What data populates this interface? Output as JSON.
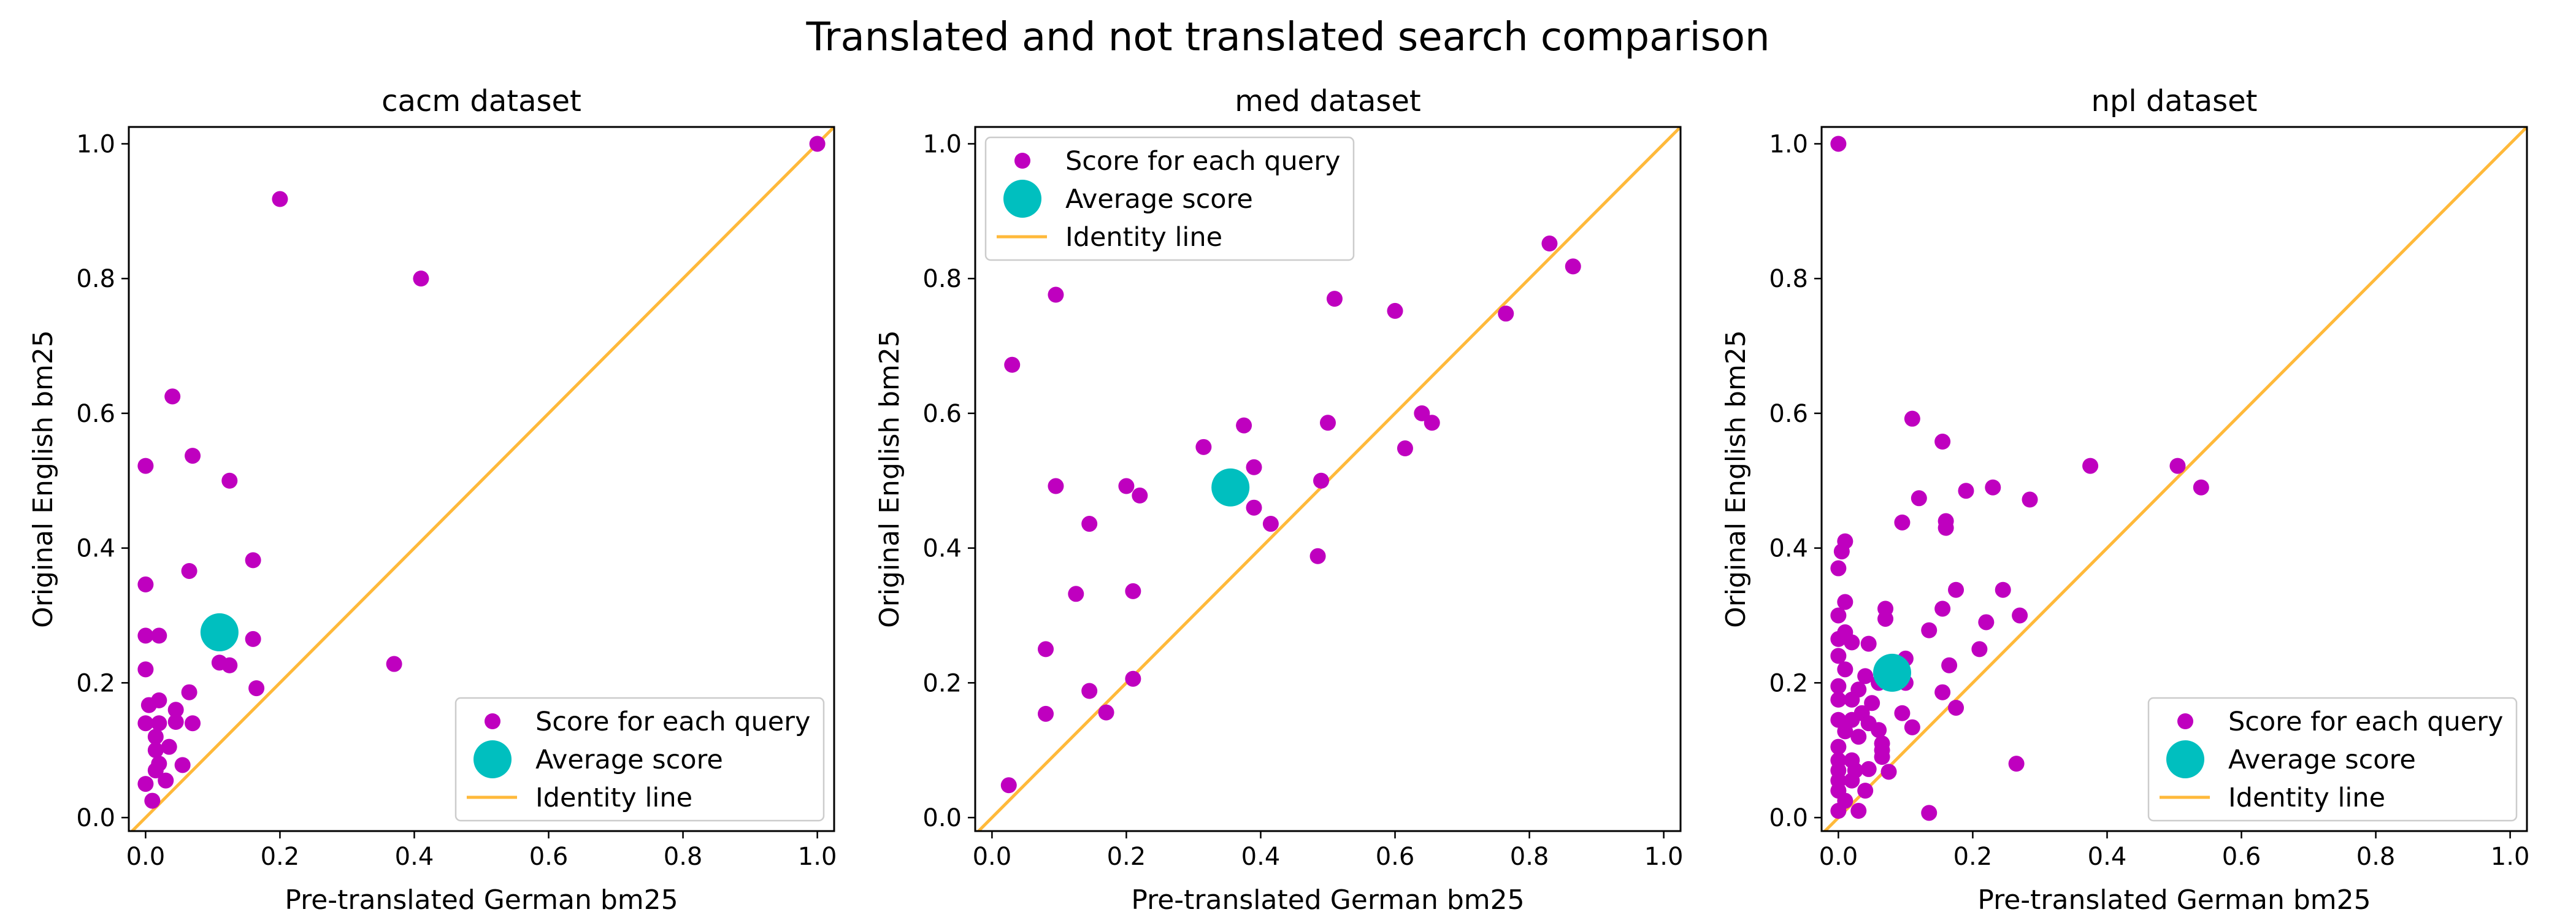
{
  "title": "Translated and not translated search comparison",
  "legend_labels": {
    "points": "Score for each query",
    "average": "Average score",
    "identity": "Identity line"
  },
  "colors": {
    "points": "#BF00BF",
    "average": "#00BFBF",
    "identity": "#FFB93A",
    "axes": "#000000"
  },
  "chart_data": [
    {
      "type": "scatter",
      "title": "cacm dataset",
      "xlabel": "Pre-translated German bm25",
      "ylabel": "Original English bm25",
      "xlim": [
        -0.025,
        1.025
      ],
      "ylim": [
        -0.02,
        1.025
      ],
      "xticks": [
        "0.0",
        "0.2",
        "0.4",
        "0.6",
        "0.8",
        "1.0"
      ],
      "yticks": [
        "0.0",
        "0.2",
        "0.4",
        "0.6",
        "0.8",
        "1.0"
      ],
      "legend_position": "lower right",
      "average": {
        "x": 0.11,
        "y": 0.275
      },
      "points": [
        [
          1.0,
          1.0
        ],
        [
          0.2,
          0.918
        ],
        [
          0.41,
          0.8
        ],
        [
          0.04,
          0.625
        ],
        [
          0.0,
          0.522
        ],
        [
          0.07,
          0.537
        ],
        [
          0.125,
          0.5
        ],
        [
          0.065,
          0.366
        ],
        [
          0.16,
          0.382
        ],
        [
          0.0,
          0.346
        ],
        [
          0.0,
          0.27
        ],
        [
          0.02,
          0.27
        ],
        [
          0.1,
          0.268
        ],
        [
          0.16,
          0.265
        ],
        [
          0.11,
          0.23
        ],
        [
          0.125,
          0.226
        ],
        [
          0.37,
          0.228
        ],
        [
          0.0,
          0.22
        ],
        [
          0.165,
          0.192
        ],
        [
          0.065,
          0.186
        ],
        [
          0.005,
          0.167
        ],
        [
          0.02,
          0.174
        ],
        [
          0.045,
          0.16
        ],
        [
          0.0,
          0.14
        ],
        [
          0.02,
          0.14
        ],
        [
          0.045,
          0.142
        ],
        [
          0.07,
          0.14
        ],
        [
          0.015,
          0.12
        ],
        [
          0.035,
          0.105
        ],
        [
          0.015,
          0.1
        ],
        [
          0.02,
          0.08
        ],
        [
          0.055,
          0.078
        ],
        [
          0.0,
          0.05
        ],
        [
          0.015,
          0.07
        ],
        [
          0.03,
          0.055
        ],
        [
          0.01,
          0.025
        ]
      ]
    },
    {
      "type": "scatter",
      "title": "med dataset",
      "xlabel": "Pre-translated German bm25",
      "ylabel": "Original English bm25",
      "xlim": [
        -0.025,
        1.025
      ],
      "ylim": [
        -0.02,
        1.025
      ],
      "xticks": [
        "0.0",
        "0.2",
        "0.4",
        "0.6",
        "0.8",
        "1.0"
      ],
      "yticks": [
        "0.0",
        "0.2",
        "0.4",
        "0.6",
        "0.8",
        "1.0"
      ],
      "legend_position": "upper left",
      "average": {
        "x": 0.355,
        "y": 0.49
      },
      "points": [
        [
          0.03,
          0.672
        ],
        [
          0.095,
          0.776
        ],
        [
          0.83,
          0.852
        ],
        [
          0.865,
          0.818
        ],
        [
          0.51,
          0.77
        ],
        [
          0.6,
          0.752
        ],
        [
          0.765,
          0.748
        ],
        [
          0.375,
          0.582
        ],
        [
          0.315,
          0.55
        ],
        [
          0.5,
          0.586
        ],
        [
          0.64,
          0.6
        ],
        [
          0.655,
          0.586
        ],
        [
          0.615,
          0.548
        ],
        [
          0.39,
          0.52
        ],
        [
          0.095,
          0.492
        ],
        [
          0.2,
          0.492
        ],
        [
          0.22,
          0.478
        ],
        [
          0.49,
          0.5
        ],
        [
          0.39,
          0.46
        ],
        [
          0.145,
          0.436
        ],
        [
          0.415,
          0.436
        ],
        [
          0.125,
          0.332
        ],
        [
          0.21,
          0.336
        ],
        [
          0.485,
          0.388
        ],
        [
          0.08,
          0.25
        ],
        [
          0.145,
          0.188
        ],
        [
          0.21,
          0.206
        ],
        [
          0.08,
          0.154
        ],
        [
          0.17,
          0.156
        ],
        [
          0.025,
          0.048
        ]
      ]
    },
    {
      "type": "scatter",
      "title": "npl dataset",
      "xlabel": "Pre-translated German bm25",
      "ylabel": "Original English bm25",
      "xlim": [
        -0.025,
        1.025
      ],
      "ylim": [
        -0.02,
        1.025
      ],
      "xticks": [
        "0.0",
        "0.2",
        "0.4",
        "0.6",
        "0.8",
        "1.0"
      ],
      "yticks": [
        "0.0",
        "0.2",
        "0.4",
        "0.6",
        "0.8",
        "1.0"
      ],
      "legend_position": "lower right",
      "average": {
        "x": 0.08,
        "y": 0.215
      },
      "points": [
        [
          0.0,
          1.0
        ],
        [
          0.11,
          0.592
        ],
        [
          0.155,
          0.558
        ],
        [
          0.375,
          0.522
        ],
        [
          0.505,
          0.522
        ],
        [
          0.54,
          0.49
        ],
        [
          0.19,
          0.485
        ],
        [
          0.23,
          0.49
        ],
        [
          0.12,
          0.474
        ],
        [
          0.285,
          0.472
        ],
        [
          0.095,
          0.438
        ],
        [
          0.16,
          0.44
        ],
        [
          0.16,
          0.43
        ],
        [
          0.01,
          0.41
        ],
        [
          0.005,
          0.395
        ],
        [
          0.0,
          0.37
        ],
        [
          0.175,
          0.338
        ],
        [
          0.245,
          0.338
        ],
        [
          0.01,
          0.32
        ],
        [
          0.07,
          0.31
        ],
        [
          0.155,
          0.31
        ],
        [
          0.0,
          0.3
        ],
        [
          0.07,
          0.295
        ],
        [
          0.27,
          0.3
        ],
        [
          0.22,
          0.29
        ],
        [
          0.135,
          0.278
        ],
        [
          0.01,
          0.275
        ],
        [
          0.0,
          0.265
        ],
        [
          0.02,
          0.26
        ],
        [
          0.045,
          0.258
        ],
        [
          0.0,
          0.24
        ],
        [
          0.1,
          0.236
        ],
        [
          0.21,
          0.25
        ],
        [
          0.165,
          0.226
        ],
        [
          0.01,
          0.22
        ],
        [
          0.04,
          0.21
        ],
        [
          0.06,
          0.2
        ],
        [
          0.1,
          0.2
        ],
        [
          0.0,
          0.195
        ],
        [
          0.03,
          0.19
        ],
        [
          0.155,
          0.186
        ],
        [
          0.0,
          0.175
        ],
        [
          0.02,
          0.175
        ],
        [
          0.05,
          0.17
        ],
        [
          0.175,
          0.163
        ],
        [
          0.035,
          0.155
        ],
        [
          0.095,
          0.155
        ],
        [
          0.0,
          0.145
        ],
        [
          0.02,
          0.145
        ],
        [
          0.045,
          0.14
        ],
        [
          0.11,
          0.134
        ],
        [
          0.01,
          0.128
        ],
        [
          0.06,
          0.13
        ],
        [
          0.03,
          0.12
        ],
        [
          0.065,
          0.11
        ],
        [
          0.0,
          0.105
        ],
        [
          0.065,
          0.1
        ],
        [
          0.0,
          0.085
        ],
        [
          0.02,
          0.085
        ],
        [
          0.065,
          0.09
        ],
        [
          0.265,
          0.08
        ],
        [
          0.0,
          0.07
        ],
        [
          0.025,
          0.07
        ],
        [
          0.045,
          0.072
        ],
        [
          0.075,
          0.068
        ],
        [
          0.0,
          0.055
        ],
        [
          0.02,
          0.055
        ],
        [
          0.0,
          0.04
        ],
        [
          0.04,
          0.04
        ],
        [
          0.01,
          0.025
        ],
        [
          0.0,
          0.01
        ],
        [
          0.03,
          0.01
        ],
        [
          0.135,
          0.007
        ]
      ]
    }
  ]
}
